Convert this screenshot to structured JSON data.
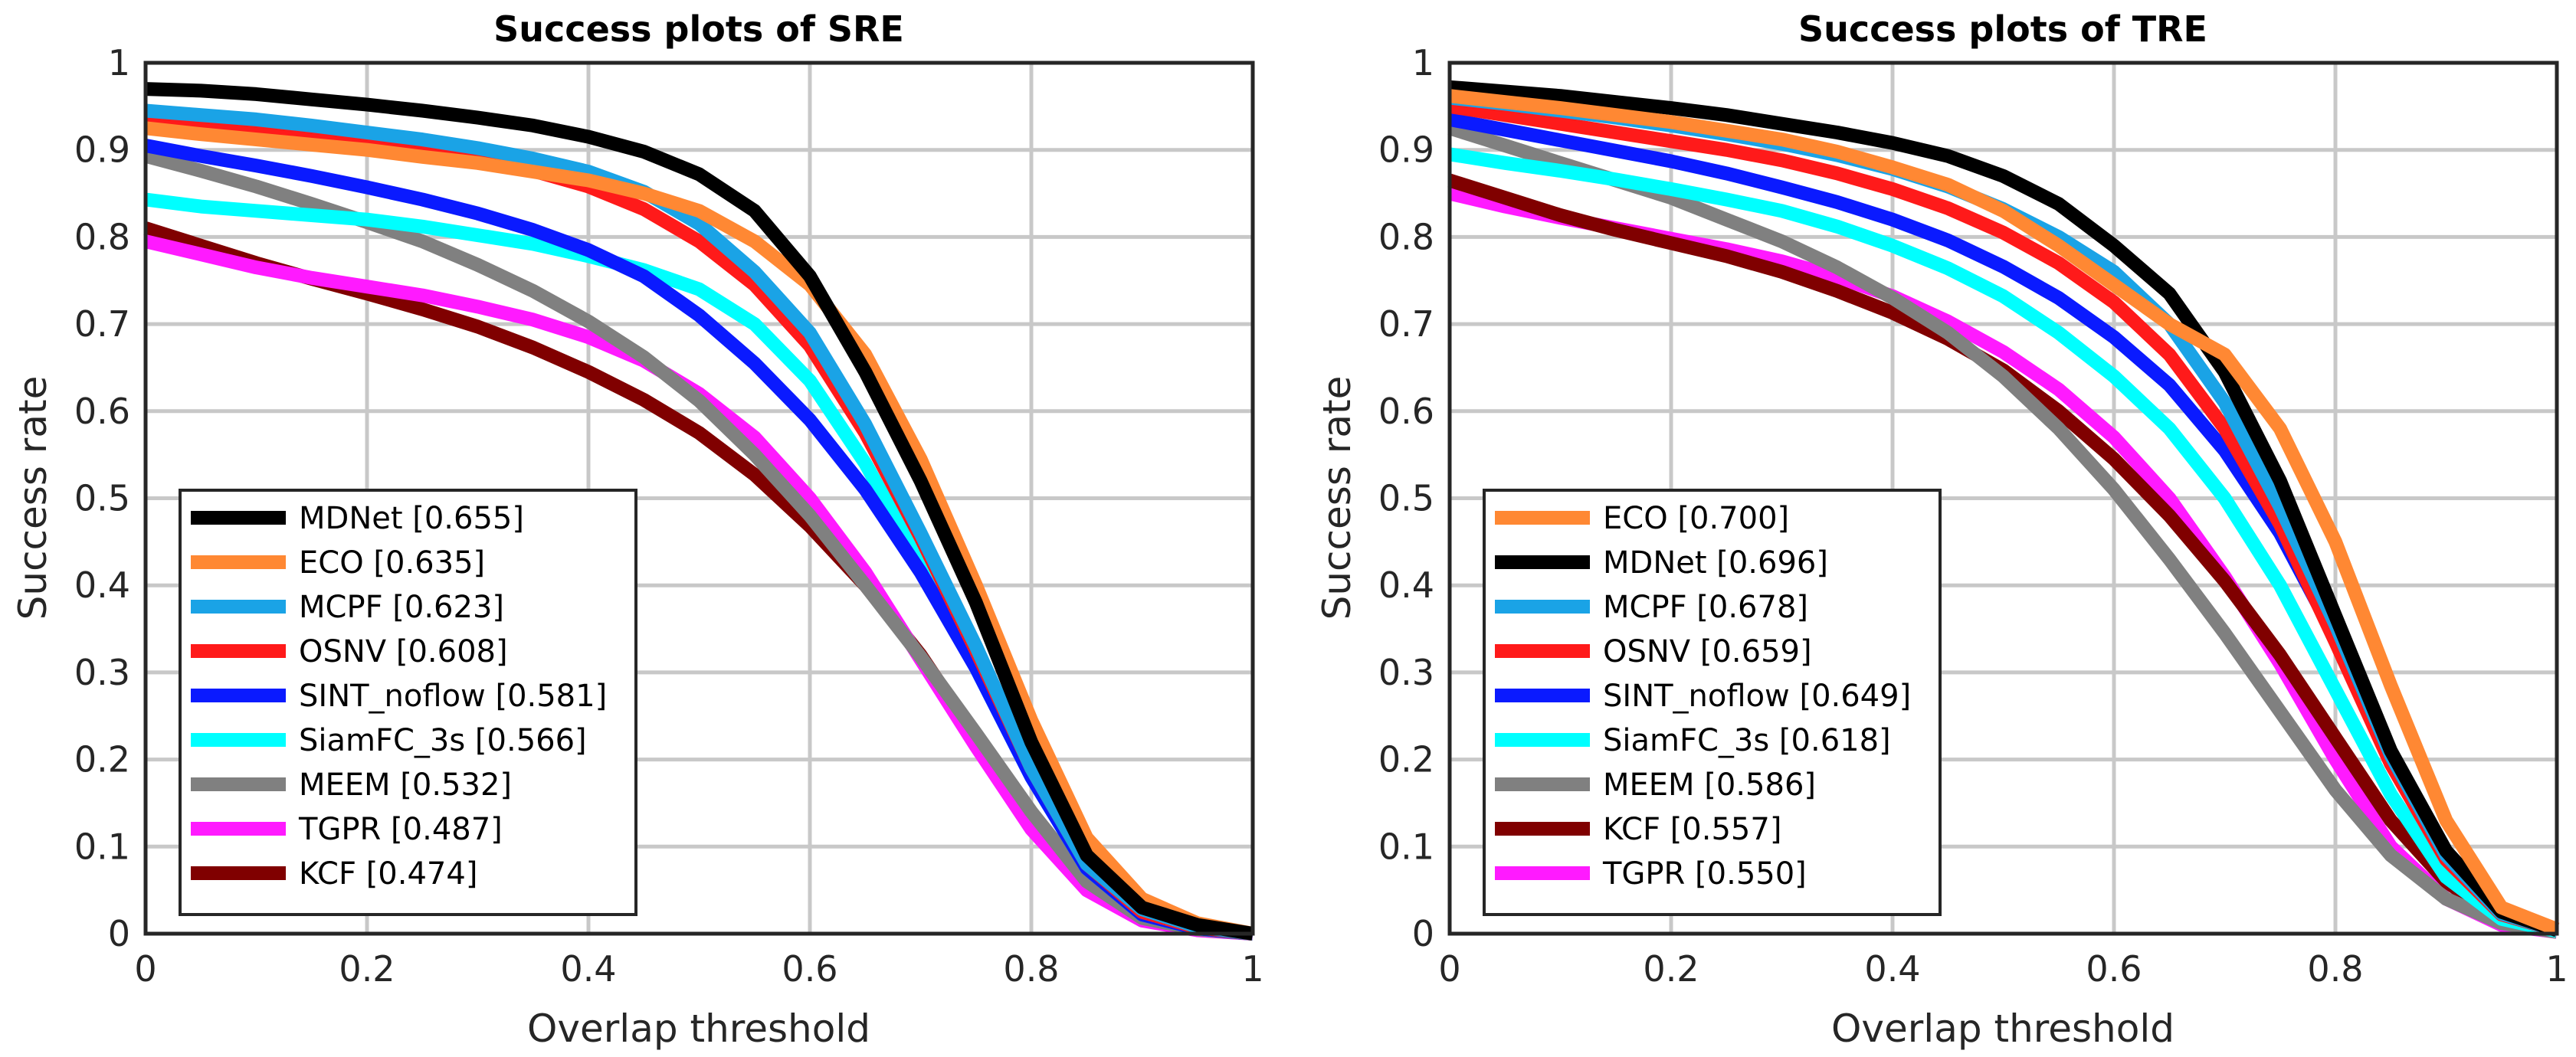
{
  "chart_data": [
    {
      "type": "line",
      "title": "Success plots of SRE",
      "xlabel": "Overlap threshold",
      "ylabel": "Success rate",
      "xlim": [
        0,
        1
      ],
      "ylim": [
        0,
        1
      ],
      "grid": true,
      "legend_position": "bottom-left",
      "x": [
        0,
        0.05,
        0.1,
        0.15,
        0.2,
        0.25,
        0.3,
        0.35,
        0.4,
        0.45,
        0.5,
        0.55,
        0.6,
        0.65,
        0.7,
        0.75,
        0.8,
        0.85,
        0.9,
        0.95,
        1.0
      ],
      "x_ticks": [
        "0",
        "0.2",
        "0.4",
        "0.6",
        "0.8",
        "1"
      ],
      "y_ticks": [
        "0",
        "0.1",
        "0.2",
        "0.3",
        "0.4",
        "0.5",
        "0.6",
        "0.7",
        "0.8",
        "0.9",
        "1"
      ],
      "series": [
        {
          "name": "MDNet",
          "legend": "MDNet [0.655]",
          "color": "#000000",
          "values": [
            0.97,
            0.968,
            0.964,
            0.958,
            0.952,
            0.945,
            0.937,
            0.928,
            0.915,
            0.898,
            0.872,
            0.83,
            0.755,
            0.645,
            0.52,
            0.38,
            0.22,
            0.09,
            0.03,
            0.01,
            0.0
          ]
        },
        {
          "name": "ECO",
          "legend": "ECO [0.635]",
          "color": "#ff8833",
          "values": [
            0.925,
            0.918,
            0.912,
            0.906,
            0.9,
            0.892,
            0.885,
            0.875,
            0.865,
            0.85,
            0.83,
            0.795,
            0.745,
            0.665,
            0.545,
            0.4,
            0.245,
            0.11,
            0.04,
            0.012,
            0.0
          ]
        },
        {
          "name": "MCPF",
          "legend": "MCPF [0.623]",
          "color": "#1aa3e6",
          "values": [
            0.945,
            0.94,
            0.935,
            0.928,
            0.92,
            0.912,
            0.902,
            0.89,
            0.875,
            0.852,
            0.815,
            0.76,
            0.69,
            0.585,
            0.46,
            0.33,
            0.19,
            0.08,
            0.028,
            0.008,
            0.0
          ]
        },
        {
          "name": "OSNV",
          "legend": "OSNV [0.608]",
          "color": "#ff1a1a",
          "values": [
            0.937,
            0.93,
            0.924,
            0.916,
            0.908,
            0.9,
            0.89,
            0.876,
            0.858,
            0.832,
            0.795,
            0.745,
            0.675,
            0.575,
            0.455,
            0.325,
            0.19,
            0.08,
            0.025,
            0.007,
            0.0
          ]
        },
        {
          "name": "SINT_noflow",
          "legend": "SINT_noflow [0.581]",
          "color": "#0a1aff",
          "values": [
            0.905,
            0.893,
            0.882,
            0.87,
            0.857,
            0.843,
            0.827,
            0.808,
            0.785,
            0.755,
            0.71,
            0.655,
            0.59,
            0.51,
            0.415,
            0.305,
            0.18,
            0.075,
            0.022,
            0.006,
            0.0
          ]
        },
        {
          "name": "SiamFC_3s",
          "legend": "SiamFC_3s [0.566]",
          "color": "#00ffff",
          "values": [
            0.843,
            0.835,
            0.83,
            0.825,
            0.82,
            0.812,
            0.802,
            0.792,
            0.778,
            0.762,
            0.74,
            0.7,
            0.635,
            0.54,
            0.425,
            0.305,
            0.18,
            0.075,
            0.022,
            0.006,
            0.0
          ]
        },
        {
          "name": "MEEM",
          "legend": "MEEM [0.532]",
          "color": "#808080",
          "values": [
            0.893,
            0.876,
            0.858,
            0.838,
            0.817,
            0.795,
            0.768,
            0.738,
            0.703,
            0.662,
            0.612,
            0.55,
            0.48,
            0.4,
            0.318,
            0.23,
            0.14,
            0.06,
            0.018,
            0.005,
            0.0
          ]
        },
        {
          "name": "TGPR",
          "legend": "TGPR [0.487]",
          "color": "#ff1aff",
          "values": [
            0.795,
            0.78,
            0.765,
            0.753,
            0.743,
            0.733,
            0.72,
            0.705,
            0.685,
            0.658,
            0.62,
            0.57,
            0.5,
            0.415,
            0.315,
            0.215,
            0.12,
            0.05,
            0.015,
            0.004,
            0.0
          ]
        },
        {
          "name": "KCF",
          "legend": "KCF [0.474]",
          "color": "#800000",
          "values": [
            0.81,
            0.79,
            0.77,
            0.752,
            0.735,
            0.717,
            0.697,
            0.673,
            0.645,
            0.613,
            0.575,
            0.527,
            0.468,
            0.4,
            0.32,
            0.225,
            0.13,
            0.055,
            0.017,
            0.005,
            0.0
          ]
        }
      ]
    },
    {
      "type": "line",
      "title": "Success plots of TRE",
      "xlabel": "Overlap threshold",
      "ylabel": "Success rate",
      "xlim": [
        0,
        1
      ],
      "ylim": [
        0,
        1
      ],
      "grid": true,
      "legend_position": "bottom-left",
      "x": [
        0,
        0.05,
        0.1,
        0.15,
        0.2,
        0.25,
        0.3,
        0.35,
        0.4,
        0.45,
        0.5,
        0.55,
        0.6,
        0.65,
        0.7,
        0.75,
        0.8,
        0.85,
        0.9,
        0.95,
        1.0
      ],
      "x_ticks": [
        "0",
        "0.2",
        "0.4",
        "0.6",
        "0.8",
        "1"
      ],
      "y_ticks": [
        "0",
        "0.1",
        "0.2",
        "0.3",
        "0.4",
        "0.5",
        "0.6",
        "0.7",
        "0.8",
        "0.9",
        "1"
      ],
      "series": [
        {
          "name": "ECO",
          "legend": "ECO [0.700]",
          "color": "#ff8833",
          "values": [
            0.962,
            0.955,
            0.948,
            0.94,
            0.932,
            0.922,
            0.912,
            0.898,
            0.88,
            0.86,
            0.83,
            0.79,
            0.745,
            0.7,
            0.665,
            0.58,
            0.45,
            0.285,
            0.13,
            0.03,
            0.005
          ]
        },
        {
          "name": "MDNet",
          "legend": "MDNet [0.696]",
          "color": "#000000",
          "values": [
            0.972,
            0.967,
            0.962,
            0.955,
            0.948,
            0.94,
            0.93,
            0.92,
            0.908,
            0.893,
            0.87,
            0.838,
            0.79,
            0.735,
            0.645,
            0.52,
            0.365,
            0.21,
            0.095,
            0.025,
            0.004
          ]
        },
        {
          "name": "MCPF",
          "legend": "MCPF [0.678]",
          "color": "#1aa3e6",
          "values": [
            0.96,
            0.953,
            0.945,
            0.937,
            0.928,
            0.918,
            0.907,
            0.894,
            0.878,
            0.858,
            0.832,
            0.8,
            0.76,
            0.7,
            0.61,
            0.49,
            0.355,
            0.205,
            0.09,
            0.023,
            0.004
          ]
        },
        {
          "name": "OSNV",
          "legend": "OSNV [0.659]",
          "color": "#ff1a1a",
          "values": [
            0.95,
            0.94,
            0.93,
            0.92,
            0.91,
            0.9,
            0.888,
            0.873,
            0.855,
            0.833,
            0.805,
            0.77,
            0.725,
            0.665,
            0.58,
            0.47,
            0.335,
            0.195,
            0.085,
            0.022,
            0.004
          ]
        },
        {
          "name": "SINT_noflow",
          "legend": "SINT_noflow [0.649]",
          "color": "#0a1aff",
          "values": [
            0.935,
            0.923,
            0.911,
            0.899,
            0.887,
            0.873,
            0.857,
            0.84,
            0.82,
            0.796,
            0.766,
            0.73,
            0.685,
            0.63,
            0.555,
            0.46,
            0.34,
            0.205,
            0.09,
            0.023,
            0.004
          ]
        },
        {
          "name": "SiamFC_3s",
          "legend": "SiamFC_3s [0.618]",
          "color": "#00ffff",
          "values": [
            0.895,
            0.885,
            0.876,
            0.866,
            0.855,
            0.843,
            0.83,
            0.812,
            0.79,
            0.764,
            0.732,
            0.69,
            0.64,
            0.58,
            0.5,
            0.4,
            0.28,
            0.16,
            0.065,
            0.017,
            0.003
          ]
        },
        {
          "name": "MEEM",
          "legend": "MEEM [0.586]",
          "color": "#808080",
          "values": [
            0.925,
            0.905,
            0.885,
            0.865,
            0.845,
            0.82,
            0.795,
            0.765,
            0.73,
            0.69,
            0.64,
            0.58,
            0.51,
            0.43,
            0.345,
            0.255,
            0.165,
            0.09,
            0.04,
            0.012,
            0.002
          ]
        },
        {
          "name": "KCF",
          "legend": "KCF [0.557]",
          "color": "#800000",
          "values": [
            0.865,
            0.845,
            0.825,
            0.808,
            0.793,
            0.778,
            0.76,
            0.738,
            0.713,
            0.683,
            0.647,
            0.6,
            0.545,
            0.48,
            0.405,
            0.32,
            0.225,
            0.13,
            0.06,
            0.016,
            0.003
          ]
        },
        {
          "name": "TGPR",
          "legend": "TGPR [0.550]",
          "color": "#ff1aff",
          "values": [
            0.85,
            0.835,
            0.822,
            0.81,
            0.798,
            0.786,
            0.772,
            0.754,
            0.732,
            0.703,
            0.668,
            0.625,
            0.57,
            0.5,
            0.41,
            0.31,
            0.2,
            0.1,
            0.04,
            0.01,
            0.002
          ]
        }
      ]
    }
  ]
}
